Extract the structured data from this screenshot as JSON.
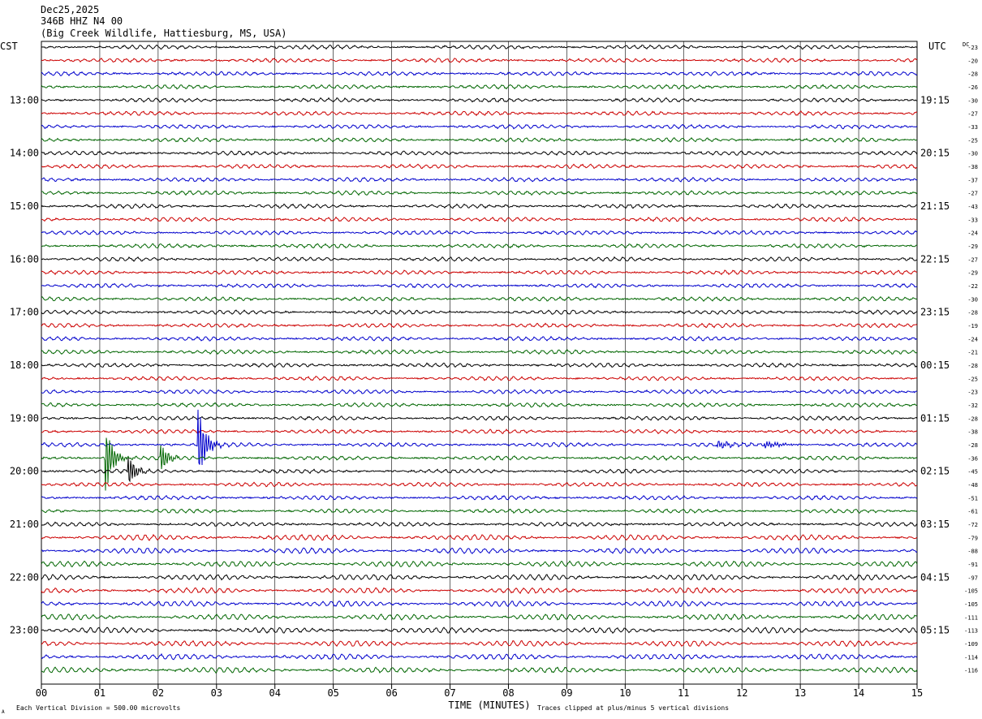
{
  "header": {
    "date": "Dec25,2025",
    "station": "346B HHZ N4 00",
    "location": "(Big Creek Wildlife, Hattiesburg, MS, USA)"
  },
  "left_tz": "CST",
  "right_tz": "UTC",
  "dc_label": "DC",
  "x_axis_title": "TIME (MINUTES)",
  "footer": {
    "scale_note": "Each Vertical Division =  500.00 microvolts",
    "clip_note": "Traces clipped at plus/minus 5 vertical divisions",
    "corner_mark": "A"
  },
  "colors": {
    "trace_cycle": [
      "#000000",
      "#cc0000",
      "#0000cc",
      "#006600"
    ],
    "grid": "#000000"
  },
  "chart_data": {
    "type": "line",
    "description_type": "helicorder",
    "x": {
      "label": "TIME (MINUTES)",
      "range": [
        0,
        15
      ],
      "ticks": [
        "00",
        "01",
        "02",
        "03",
        "04",
        "05",
        "06",
        "07",
        "08",
        "09",
        "10",
        "11",
        "12",
        "13",
        "14",
        "15"
      ]
    },
    "rows_per_hour": 4,
    "minutes_per_row": 15,
    "left_hour_labels": [
      "13:00",
      "14:00",
      "15:00",
      "16:00",
      "17:00",
      "18:00",
      "19:00",
      "20:00",
      "21:00",
      "22:00",
      "23:00"
    ],
    "right_hour_labels": [
      "19:15",
      "20:15",
      "21:15",
      "22:15",
      "23:15",
      "00:15",
      "01:15",
      "02:15",
      "03:15",
      "04:15",
      "05:15"
    ],
    "dc_offsets": [
      -23,
      -20,
      -28,
      -26,
      -30,
      -27,
      -33,
      -25,
      -30,
      -38,
      -37,
      -27,
      -43,
      -33,
      -24,
      -29,
      -27,
      -29,
      -22,
      -30,
      -28,
      -19,
      -24,
      -21,
      -28,
      -25,
      -23,
      -32,
      -28,
      -38,
      -28,
      -36,
      -45,
      -48,
      -51,
      -61,
      -72,
      -79,
      -88,
      -91,
      -97,
      -105,
      -105,
      -111,
      -113,
      -109,
      -114,
      -116
    ],
    "events": [
      {
        "row": 30,
        "minute": 2.7,
        "amplitude": "large",
        "label": "spike"
      },
      {
        "row": 31,
        "minute": 1.1,
        "amplitude": "large",
        "label": "spike"
      },
      {
        "row": 31,
        "minute": 2.05,
        "amplitude": "medium",
        "label": "spike"
      },
      {
        "row": 30,
        "minute": 11.6,
        "amplitude": "small",
        "label": "burst"
      },
      {
        "row": 30,
        "minute": 12.4,
        "amplitude": "small",
        "label": "burst"
      },
      {
        "row": 32,
        "minute": 1.5,
        "amplitude": "medium",
        "label": "coda"
      }
    ]
  }
}
